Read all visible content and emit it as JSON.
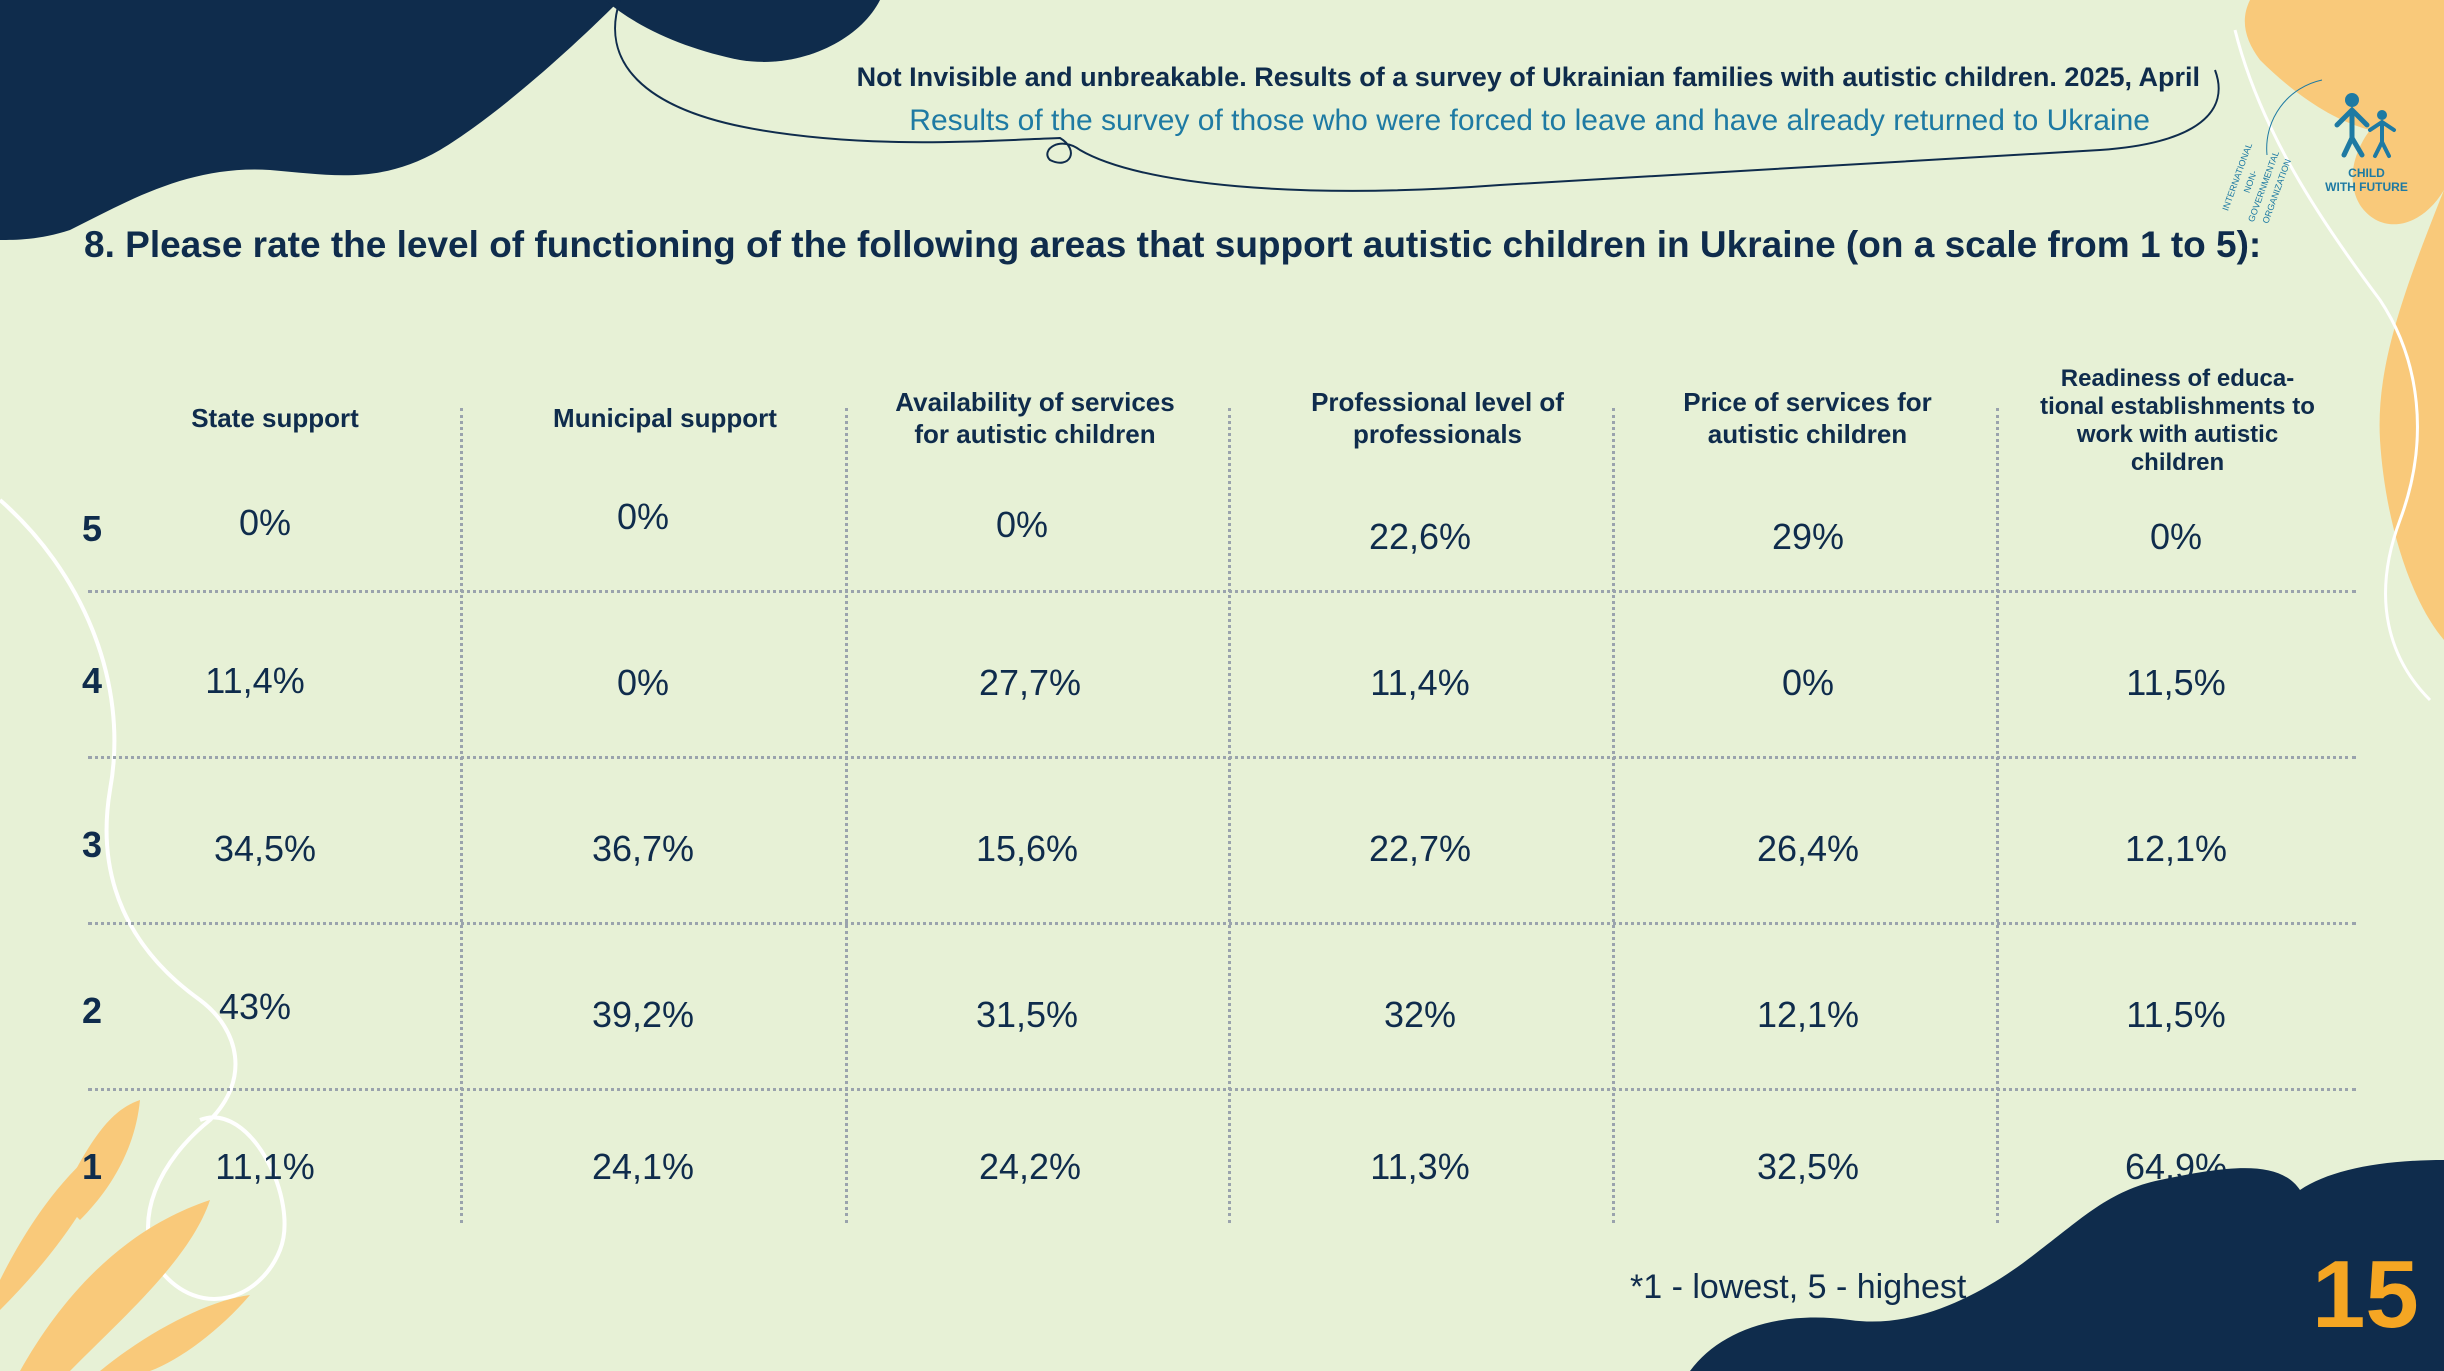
{
  "header": {
    "title": "Not Invisible and unbreakable. Results of a survey of Ukrainian families with autistic children. 2025, April",
    "subtitle": "Results of the survey of those who were forced to leave and have already returned to Ukraine"
  },
  "logo": {
    "arc_text": "INTERNATIONAL NON-GOVERNMENTAL ORGANIZATION",
    "line1": "CHILD",
    "line2": "WITH FUTURE"
  },
  "question": "8. Please rate the level of functioning of the following areas that support autistic children in Ukraine (on a scale from 1 to 5):",
  "table": {
    "columns": [
      "State support",
      "Municipal support",
      "Availability of services for autistic children",
      "Professional level of professionals",
      "Price of services for autistic children",
      "Readiness of educa-tional establishments to work with autistic children"
    ],
    "rows": [
      {
        "label": "5",
        "values": [
          "0%",
          "0%",
          "0%",
          "22,6%",
          "29%",
          "0%"
        ]
      },
      {
        "label": "4",
        "values": [
          "11,4%",
          "0%",
          "27,7%",
          "11,4%",
          "0%",
          "11,5%"
        ]
      },
      {
        "label": "3",
        "values": [
          "34,5%",
          "36,7%",
          "15,6%",
          "22,7%",
          "26,4%",
          "12,1%"
        ]
      },
      {
        "label": "2",
        "values": [
          "43%",
          "39,2%",
          "31,5%",
          "32%",
          "12,1%",
          "11,5%"
        ]
      },
      {
        "label": "1",
        "values": [
          "11,1%",
          "24,1%",
          "24,2%",
          "11,3%",
          "32,5%",
          "64,9%"
        ]
      }
    ]
  },
  "footnote": "*1 - lowest,  5 - highest",
  "page_number": "15",
  "colors": {
    "background": "#e7f1d6",
    "navy": "#0f2c4c",
    "orange": "#f5a623",
    "peach": "#f9c97a",
    "blue": "#1e7aa3"
  }
}
